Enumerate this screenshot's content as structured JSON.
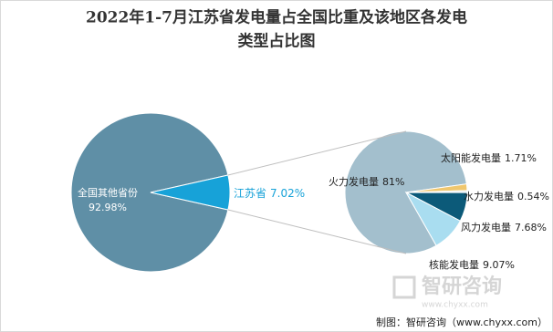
{
  "chart_data": [
    {
      "type": "pie",
      "title": [
        "2022年1-7月江苏省发电量占全国比重及该地区各发电",
        "类型占比图"
      ],
      "categories": [
        "全国其他省份",
        "江苏省"
      ],
      "values": [
        92.98,
        7.02
      ],
      "value_labels": [
        "92.98%",
        "7.02%"
      ],
      "colors": [
        "#5f8fa6",
        "#17a2d8"
      ]
    },
    {
      "type": "pie",
      "categories": [
        "火力发电量",
        "太阳能发电量",
        "水力发电量",
        "风力发电量",
        "核能发电量"
      ],
      "values": [
        81,
        1.71,
        0.54,
        7.68,
        9.07
      ],
      "value_labels": [
        "81%",
        "1.71%",
        "0.54%",
        "7.68%",
        "9.07%"
      ],
      "colors": [
        "#a3bfcd",
        "#f0c76e",
        "#e8eef2",
        "#0c5a79",
        "#a9ddf0"
      ]
    }
  ],
  "watermark": {
    "name": "智研咨询",
    "url": "www.chyxx.com"
  },
  "source": "制图：智研咨询（www.chyxx.com）"
}
